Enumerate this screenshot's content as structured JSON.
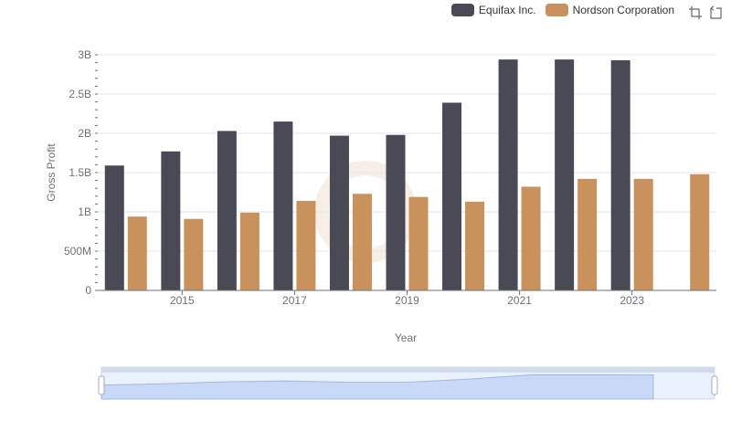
{
  "legend": {
    "items": [
      {
        "label": "Equifax Inc.",
        "color": "#4a4a56"
      },
      {
        "label": "Nordson Corporation",
        "color": "#c9915c"
      }
    ]
  },
  "toolbar": {
    "icons": [
      "zoom-select-icon",
      "zoom-reset-icon"
    ]
  },
  "chart_data": {
    "type": "bar",
    "categories": [
      "2014",
      "2015",
      "2016",
      "2017",
      "2018",
      "2019",
      "2020",
      "2021",
      "2022",
      "2023",
      "2024"
    ],
    "x_tick_labels": [
      "2015",
      "2017",
      "2019",
      "2021",
      "2023"
    ],
    "series": [
      {
        "name": "Equifax Inc.",
        "color": "#4a4a56",
        "values": [
          1590000000.0,
          1770000000.0,
          2030000000.0,
          2150000000.0,
          1970000000.0,
          1980000000.0,
          2390000000.0,
          2940000000.0,
          2940000000.0,
          2930000000.0,
          null
        ]
      },
      {
        "name": "Nordson Corporation",
        "color": "#c9915c",
        "values": [
          940000000.0,
          910000000.0,
          990000000.0,
          1140000000.0,
          1230000000.0,
          1190000000.0,
          1130000000.0,
          1320000000.0,
          1420000000.0,
          1420000000.0,
          1480000000.0
        ]
      }
    ],
    "ylim": [
      0,
      3000000000
    ],
    "y_ticks": [
      0,
      500000000,
      1000000000,
      1500000000,
      2000000000,
      2500000000,
      3000000000
    ],
    "y_tick_labels": [
      "0",
      "500M",
      "1B",
      "1.5B",
      "2B",
      "2.5B",
      "3B"
    ],
    "xlabel": "Year",
    "ylabel": "Gross Profit",
    "grid": true,
    "legend_position": "top-right",
    "data_zoom": {
      "start": 0,
      "end": 100
    }
  }
}
